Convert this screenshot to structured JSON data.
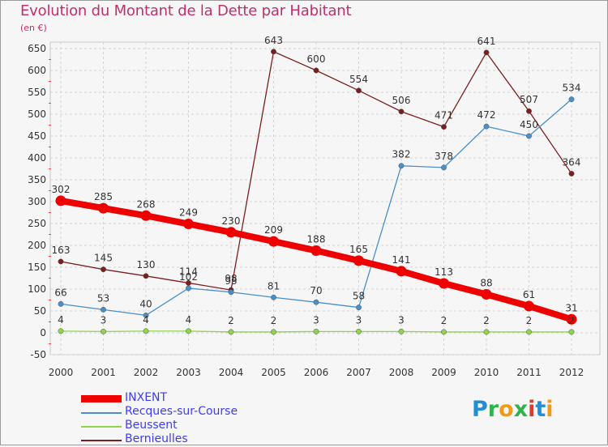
{
  "title": "Evolution du Montant de la Dette par Habitant",
  "unit": "(en €)",
  "logo": {
    "letters": [
      "P",
      "r",
      "o",
      "x",
      "i",
      "t",
      "i"
    ],
    "colors": [
      "#1f8fd8",
      "#2fb34a",
      "#f29a16",
      "#2fb34a",
      "#e23b2e",
      "#1f8fd8",
      "#f29a16"
    ]
  },
  "chart_data": {
    "type": "line",
    "title": "Evolution du Montant de la Dette par Habitant",
    "ylabel": "(en €)",
    "ylim": [
      -50,
      650
    ],
    "yticks": [
      -50,
      0,
      50,
      100,
      150,
      200,
      250,
      300,
      350,
      400,
      450,
      500,
      550,
      600,
      650
    ],
    "categories": [
      "2000",
      "2001",
      "2002",
      "2003",
      "2004",
      "2005",
      "2006",
      "2007",
      "2008",
      "2009",
      "2010",
      "2011",
      "2012"
    ],
    "grid": true,
    "legend_position": "bottom-left",
    "series": [
      {
        "name": "INXENT",
        "color": "#ee0000",
        "values": [
          302,
          285,
          268,
          249,
          230,
          209,
          188,
          165,
          141,
          113,
          88,
          61,
          31
        ],
        "labels": [
          "302",
          "285",
          "268",
          "249",
          "230",
          "209",
          "188",
          "165",
          "141",
          "113",
          "88",
          "61",
          "31"
        ]
      },
      {
        "name": "Recques-sur-Course",
        "color": "#4a8fc8",
        "values": [
          66,
          53,
          40,
          102,
          93,
          81,
          70,
          58,
          382,
          378,
          472,
          450,
          534
        ],
        "labels": [
          "66",
          "53",
          "40",
          "102",
          "93",
          "81",
          "70",
          "58",
          "382",
          "378",
          "472",
          "450",
          "534"
        ]
      },
      {
        "name": "Beussent",
        "color": "#8fd44a",
        "values": [
          4,
          3,
          4,
          4,
          2,
          2,
          3,
          3,
          3,
          2,
          2,
          2,
          2
        ],
        "labels": [
          "4",
          "3",
          "4",
          "4",
          "2",
          "2",
          "3",
          "3",
          "3",
          "2",
          "2",
          "2",
          "2"
        ]
      },
      {
        "name": "Bernieulles",
        "color": "#7a1f1f",
        "values": [
          163,
          145,
          130,
          114,
          98,
          643,
          600,
          554,
          506,
          471,
          641,
          507,
          364
        ],
        "labels": [
          "163",
          "145",
          "130",
          "114",
          "98",
          "643",
          "600",
          "554",
          "506",
          "471",
          "641",
          "507",
          "364"
        ]
      }
    ]
  }
}
